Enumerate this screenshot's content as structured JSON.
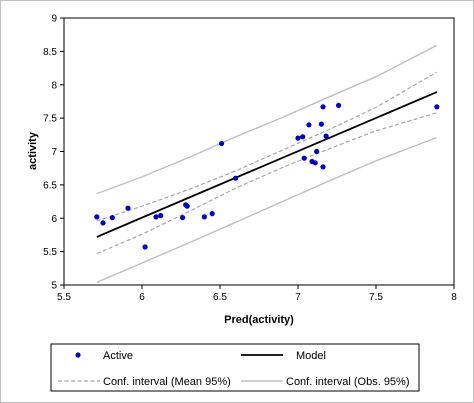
{
  "chart_data": {
    "type": "scatter",
    "title": "",
    "xlabel": "Pred(activity)",
    "ylabel": "activity",
    "xlim": [
      5.5,
      8
    ],
    "ylim": [
      5,
      9
    ],
    "xticks": [
      "5.5",
      "6",
      "6.5",
      "7",
      "7.5",
      "8"
    ],
    "yticks": [
      "5",
      "5.5",
      "6",
      "6.5",
      "7",
      "7.5",
      "8",
      "8.5",
      "9"
    ],
    "grid": false,
    "legend_position": "bottom",
    "colors": {
      "points": "#0000cc",
      "model": "#000000",
      "mean_ci": "#a6a6a6",
      "obs_ci": "#bfbfbf"
    },
    "series": [
      {
        "name": "Active",
        "kind": "points",
        "x": [
          5.71,
          5.75,
          5.81,
          5.91,
          6.02,
          6.09,
          6.12,
          6.26,
          6.28,
          6.29,
          6.4,
          6.45,
          6.51,
          6.6,
          7.0,
          7.03,
          7.04,
          7.07,
          7.09,
          7.11,
          7.12,
          7.15,
          7.16,
          7.16,
          7.18,
          7.26,
          7.89
        ],
        "y": [
          6.02,
          5.93,
          6.01,
          6.15,
          5.57,
          6.02,
          6.04,
          6.01,
          6.2,
          6.18,
          6.02,
          6.07,
          7.12,
          6.6,
          7.2,
          7.22,
          6.9,
          7.4,
          6.85,
          6.83,
          7.0,
          7.41,
          7.67,
          6.77,
          7.23,
          7.69,
          7.67
        ]
      },
      {
        "name": "Model",
        "kind": "line",
        "x": [
          5.71,
          7.89
        ],
        "y": [
          5.72,
          7.89
        ]
      },
      {
        "name": "Conf. interval (Mean 95%)",
        "kind": "band",
        "x": [
          5.71,
          6.0,
          6.3,
          6.6,
          6.9,
          7.2,
          7.5,
          7.89
        ],
        "upper": [
          5.96,
          6.18,
          6.43,
          6.71,
          7.02,
          7.33,
          7.66,
          8.19
        ],
        "lower": [
          5.47,
          5.76,
          6.1,
          6.45,
          6.76,
          7.04,
          7.31,
          7.58
        ]
      },
      {
        "name": "Conf. interval (Obs. 95%)",
        "kind": "band",
        "x": [
          5.71,
          6.0,
          6.3,
          6.6,
          6.9,
          7.2,
          7.5,
          7.89
        ],
        "upper": [
          6.37,
          6.62,
          6.91,
          7.22,
          7.51,
          7.82,
          8.12,
          8.59
        ],
        "lower": [
          5.04,
          5.33,
          5.63,
          5.94,
          6.25,
          6.56,
          6.86,
          7.21
        ]
      }
    ]
  }
}
